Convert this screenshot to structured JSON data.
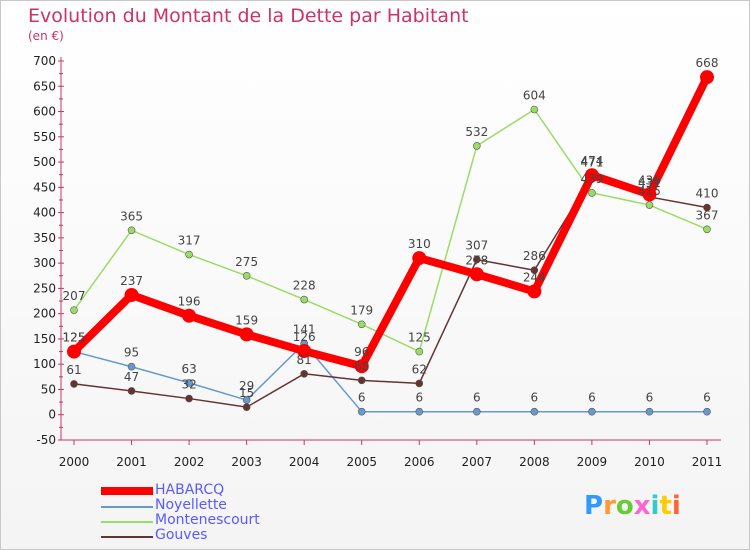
{
  "title": "Evolution du Montant de la Dette par Habitant",
  "unit": "(en €)",
  "logo": {
    "text": "Proxiti",
    "colors": [
      "#3399ff",
      "#ff9933",
      "#66cc33",
      "#ff66cc",
      "#33cccc",
      "#ffcc00",
      "#ff6633"
    ]
  },
  "chart_data": {
    "type": "line",
    "title": "Evolution du Montant de la Dette par Habitant",
    "ylabel": "(en €)",
    "xlabel": "",
    "ylim": [
      -50,
      700
    ],
    "yticks": [
      -50,
      0,
      50,
      100,
      150,
      200,
      250,
      300,
      350,
      400,
      450,
      500,
      550,
      600,
      650,
      700
    ],
    "x": [
      "2000",
      "2001",
      "2002",
      "2003",
      "2004",
      "2005",
      "2006",
      "2007",
      "2008",
      "2009",
      "2010",
      "2011"
    ],
    "legend_position": "bottom-left",
    "grid": false,
    "series": [
      {
        "name": "HABARCQ",
        "color": "#ff0000",
        "values": [
          125,
          237,
          196,
          159,
          126,
          96,
          310,
          278,
          244,
          474,
          436,
          668
        ]
      },
      {
        "name": "Noyellette",
        "color": "#6699cc",
        "values": [
          125,
          95,
          63,
          29,
          141,
          6,
          6,
          6,
          6,
          6,
          6,
          6
        ]
      },
      {
        "name": "Montenescourt",
        "color": "#99dd66",
        "values": [
          207,
          365,
          317,
          275,
          228,
          179,
          125,
          532,
          604,
          439,
          415,
          367
        ]
      },
      {
        "name": "Gouves",
        "color": "#663333",
        "values": [
          61,
          47,
          32,
          15,
          81,
          68,
          62,
          307,
          286,
          471,
          431,
          410
        ]
      }
    ]
  }
}
